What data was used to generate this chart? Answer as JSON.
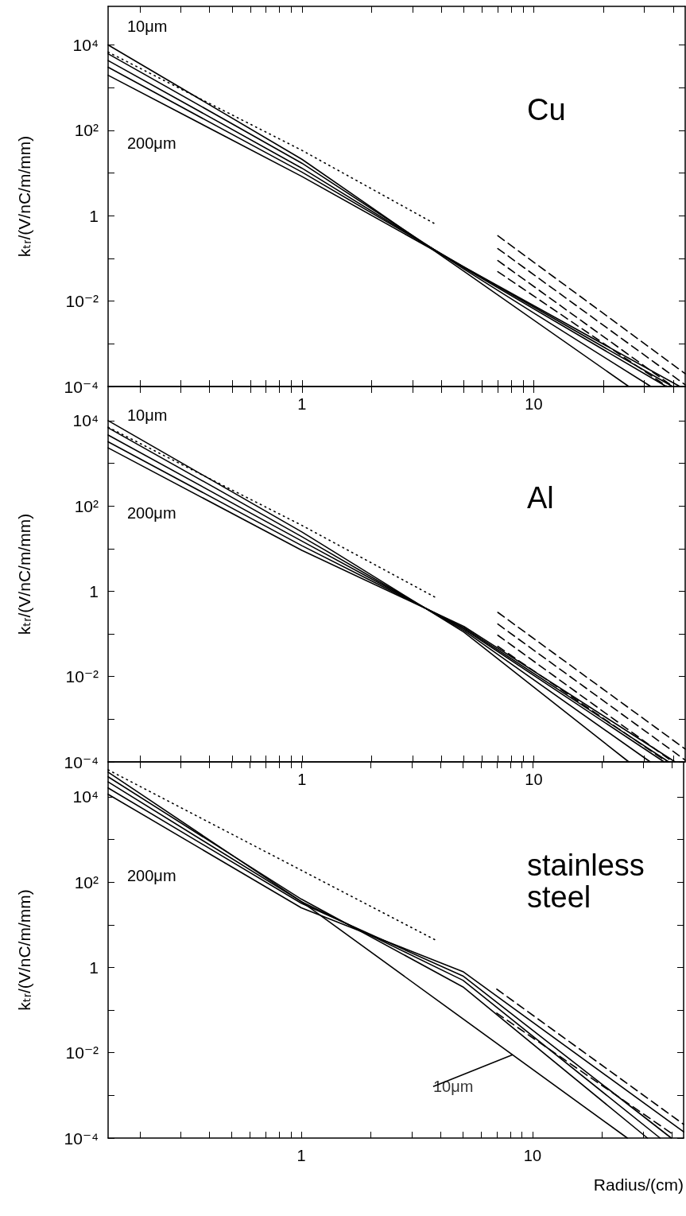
{
  "chart_data": [
    {
      "type": "line",
      "title": "Cu",
      "ylabel": "kₜᵣ/(V/nC/m/mm)",
      "log": "xy",
      "marker": "none",
      "xlim": [
        0.146,
        45
      ],
      "ylim": [
        0.0001,
        80000
      ],
      "xticks": [
        {
          "value": 0.2,
          "label": null
        },
        {
          "value": 0.3,
          "label": null
        },
        {
          "value": 0.4,
          "label": null
        },
        {
          "value": 0.5,
          "label": null
        },
        {
          "value": 0.6,
          "label": null
        },
        {
          "value": 0.7,
          "label": null
        },
        {
          "value": 0.8,
          "label": null
        },
        {
          "value": 0.9,
          "label": null
        },
        {
          "value": 1,
          "label": "1"
        },
        {
          "value": 2,
          "label": null
        },
        {
          "value": 3,
          "label": null
        },
        {
          "value": 4,
          "label": null
        },
        {
          "value": 5,
          "label": null
        },
        {
          "value": 6,
          "label": null
        },
        {
          "value": 7,
          "label": null
        },
        {
          "value": 8,
          "label": null
        },
        {
          "value": 9,
          "label": null
        },
        {
          "value": 10,
          "label": "10"
        },
        {
          "value": 20,
          "label": null
        },
        {
          "value": 30,
          "label": null
        },
        {
          "value": 40,
          "label": null
        }
      ],
      "yticks": [
        {
          "value": 0.0001,
          "label": "10⁻⁴"
        },
        {
          "value": 0.001,
          "label": null
        },
        {
          "value": 0.01,
          "label": "10⁻²"
        },
        {
          "value": 0.1,
          "label": null
        },
        {
          "value": 1,
          "label": "1"
        },
        {
          "value": 10,
          "label": null
        },
        {
          "value": 100,
          "label": "10²"
        },
        {
          "value": 1000,
          "label": null
        },
        {
          "value": 10000,
          "label": "10⁴"
        }
      ],
      "annotations": [
        "10μm",
        "200μm"
      ],
      "series": [
        {
          "color": "#000000",
          "line_style": "solid",
          "x": [
            0.146,
            1,
            5,
            25.7
          ],
          "values": [
            10000,
            21,
            0.05,
            0.0001
          ]
        },
        {
          "color": "#000000",
          "line_style": "solid",
          "x": [
            0.146,
            1,
            5,
            32
          ],
          "values": [
            6200,
            17,
            0.056,
            0.0001
          ]
        },
        {
          "color": "#000000",
          "line_style": "solid",
          "x": [
            0.146,
            1,
            5,
            37.3
          ],
          "values": [
            4300,
            13,
            0.06,
            0.0001
          ]
        },
        {
          "color": "#000000",
          "line_style": "solid",
          "x": [
            0.146,
            1,
            5,
            39.7
          ],
          "values": [
            3000,
            10.5,
            0.063,
            0.0001
          ]
        },
        {
          "color": "#000000",
          "line_style": "solid",
          "x": [
            0.146,
            1,
            5,
            42.7
          ],
          "values": [
            1950,
            8.3,
            0.063,
            0.0001
          ]
        },
        {
          "color": "#000000",
          "line_style": "dotted",
          "x": [
            0.146,
            1,
            3.8
          ],
          "values": [
            6800,
            34,
            0.62
          ]
        },
        {
          "color": "#000000",
          "line_style": "dashed",
          "x": [
            7,
            45
          ],
          "values": [
            0.34,
            0.0002
          ]
        },
        {
          "color": "#000000",
          "line_style": "dashed",
          "x": [
            7,
            45
          ],
          "values": [
            0.17,
            0.00011
          ]
        },
        {
          "color": "#000000",
          "line_style": "dashed",
          "x": [
            7,
            39.8
          ],
          "values": [
            0.089,
            0.0001
          ]
        },
        {
          "color": "#000000",
          "line_style": "dashed",
          "x": [
            7,
            37.6
          ],
          "values": [
            0.049,
            0.0001
          ]
        }
      ]
    },
    {
      "type": "line",
      "title": "Al",
      "ylabel": "kₜᵣ/(V/nC/m/mm)",
      "log": "xy",
      "marker": "none",
      "xlim": [
        0.146,
        45
      ],
      "ylim": [
        0.0001,
        63000
      ],
      "xticks": [
        {
          "value": 0.2,
          "label": null
        },
        {
          "value": 0.3,
          "label": null
        },
        {
          "value": 0.4,
          "label": null
        },
        {
          "value": 0.5,
          "label": null
        },
        {
          "value": 0.6,
          "label": null
        },
        {
          "value": 0.7,
          "label": null
        },
        {
          "value": 0.8,
          "label": null
        },
        {
          "value": 0.9,
          "label": null
        },
        {
          "value": 1,
          "label": "1"
        },
        {
          "value": 2,
          "label": null
        },
        {
          "value": 3,
          "label": null
        },
        {
          "value": 4,
          "label": null
        },
        {
          "value": 5,
          "label": null
        },
        {
          "value": 6,
          "label": null
        },
        {
          "value": 7,
          "label": null
        },
        {
          "value": 8,
          "label": null
        },
        {
          "value": 9,
          "label": null
        },
        {
          "value": 10,
          "label": "10"
        },
        {
          "value": 20,
          "label": null
        },
        {
          "value": 30,
          "label": null
        },
        {
          "value": 40,
          "label": null
        }
      ],
      "yticks": [
        {
          "value": 0.0001,
          "label": "10⁻⁴"
        },
        {
          "value": 0.001,
          "label": null
        },
        {
          "value": 0.01,
          "label": "10⁻²"
        },
        {
          "value": 0.1,
          "label": null
        },
        {
          "value": 1,
          "label": "1"
        },
        {
          "value": 10,
          "label": null
        },
        {
          "value": 100,
          "label": "10²"
        },
        {
          "value": 1000,
          "label": null
        },
        {
          "value": 10000,
          "label": "10⁴"
        }
      ],
      "annotations": [
        "10μm",
        "200μm"
      ],
      "series": [
        {
          "color": "#000000",
          "line_style": "solid",
          "x": [
            0.146,
            1,
            5,
            25.7
          ],
          "values": [
            10000,
            24.5,
            0.11,
            0.0001
          ]
        },
        {
          "color": "#000000",
          "line_style": "solid",
          "x": [
            0.146,
            1,
            5,
            31.8
          ],
          "values": [
            6800,
            19,
            0.12,
            0.0001
          ]
        },
        {
          "color": "#000000",
          "line_style": "solid",
          "x": [
            0.146,
            1,
            5,
            36.5
          ],
          "values": [
            4600,
            15,
            0.13,
            0.0001
          ]
        },
        {
          "color": "#000000",
          "line_style": "solid",
          "x": [
            0.146,
            1,
            5,
            38.2
          ],
          "values": [
            3200,
            11.7,
            0.14,
            0.0001
          ]
        },
        {
          "color": "#000000",
          "line_style": "solid",
          "x": [
            0.146,
            1,
            5,
            40.7
          ],
          "values": [
            2300,
            9.1,
            0.15,
            0.0001
          ]
        },
        {
          "color": "#000000",
          "line_style": "dotted",
          "x": [
            0.146,
            1,
            3.8
          ],
          "values": [
            7000,
            35,
            0.7
          ]
        },
        {
          "color": "#000000",
          "line_style": "dashed",
          "x": [
            7,
            45
          ],
          "values": [
            0.32,
            0.0002
          ]
        },
        {
          "color": "#000000",
          "line_style": "dashed",
          "x": [
            7,
            45
          ],
          "values": [
            0.17,
            0.00011
          ]
        },
        {
          "color": "#000000",
          "line_style": "dashed",
          "x": [
            7,
            39.8
          ],
          "values": [
            0.093,
            0.0001
          ]
        },
        {
          "color": "#000000",
          "line_style": "dashed",
          "x": [
            7,
            37.6
          ],
          "values": [
            0.051,
            0.0001
          ]
        }
      ]
    },
    {
      "type": "line",
      "title": "stainless steel",
      "xlabel": "Radius/(cm)",
      "ylabel": "kₜᵣ/(V/nC/m/mm)",
      "log": "xy",
      "marker": "none",
      "xlim": [
        0.146,
        45
      ],
      "ylim": [
        0.0001,
        66000
      ],
      "xticks": [
        {
          "value": 0.2,
          "label": null
        },
        {
          "value": 0.3,
          "label": null
        },
        {
          "value": 0.4,
          "label": null
        },
        {
          "value": 0.5,
          "label": null
        },
        {
          "value": 0.6,
          "label": null
        },
        {
          "value": 0.7,
          "label": null
        },
        {
          "value": 0.8,
          "label": null
        },
        {
          "value": 0.9,
          "label": null
        },
        {
          "value": 1,
          "label": "1"
        },
        {
          "value": 2,
          "label": null
        },
        {
          "value": 3,
          "label": null
        },
        {
          "value": 4,
          "label": null
        },
        {
          "value": 5,
          "label": null
        },
        {
          "value": 6,
          "label": null
        },
        {
          "value": 7,
          "label": null
        },
        {
          "value": 8,
          "label": null
        },
        {
          "value": 9,
          "label": null
        },
        {
          "value": 10,
          "label": "10"
        },
        {
          "value": 20,
          "label": null
        },
        {
          "value": 30,
          "label": null
        },
        {
          "value": 40,
          "label": null
        }
      ],
      "yticks": [
        {
          "value": 0.0001,
          "label": "10⁻⁴"
        },
        {
          "value": 0.001,
          "label": null
        },
        {
          "value": 0.01,
          "label": "10⁻²"
        },
        {
          "value": 0.1,
          "label": null
        },
        {
          "value": 1,
          "label": "1"
        },
        {
          "value": 10,
          "label": null
        },
        {
          "value": 100,
          "label": "10²"
        },
        {
          "value": 1000,
          "label": null
        },
        {
          "value": 10000,
          "label": "10⁴"
        }
      ],
      "annotations": [
        "200μm",
        {
          "text": "10μm",
          "x": 8.2,
          "y": 0.009
        }
      ],
      "series": [
        {
          "color": "#000000",
          "line_style": "solid",
          "x": [
            0.146,
            1,
            25.7
          ],
          "values": [
            38000,
            35,
            0.0001
          ]
        },
        {
          "color": "#000000",
          "line_style": "solid",
          "x": [
            0.146,
            1,
            5,
            31.4
          ],
          "values": [
            29500,
            40,
            0.35,
            0.0001
          ]
        },
        {
          "color": "#000000",
          "line_style": "solid",
          "x": [
            0.146,
            1,
            5,
            35.6
          ],
          "values": [
            22400,
            35,
            0.5,
            0.0001
          ]
        },
        {
          "color": "#000000",
          "line_style": "solid",
          "x": [
            0.146,
            1,
            5,
            39.8
          ],
          "values": [
            16200,
            32,
            0.63,
            0.0001
          ]
        },
        {
          "color": "#000000",
          "line_style": "solid",
          "x": [
            0.146,
            1,
            5,
            45
          ],
          "values": [
            11500,
            25,
            0.8,
            0.00014
          ]
        },
        {
          "color": "#000000",
          "line_style": "dotted",
          "x": [
            0.146,
            3.8
          ],
          "values": [
            43000,
            4.4
          ]
        },
        {
          "color": "#000000",
          "line_style": "dashed",
          "x": [
            7,
            45
          ],
          "values": [
            0.31,
            0.00021
          ]
        },
        {
          "color": "#000000",
          "line_style": "dashed",
          "x": [
            7,
            40.7
          ],
          "values": [
            0.085,
            0.00012
          ]
        }
      ]
    }
  ]
}
